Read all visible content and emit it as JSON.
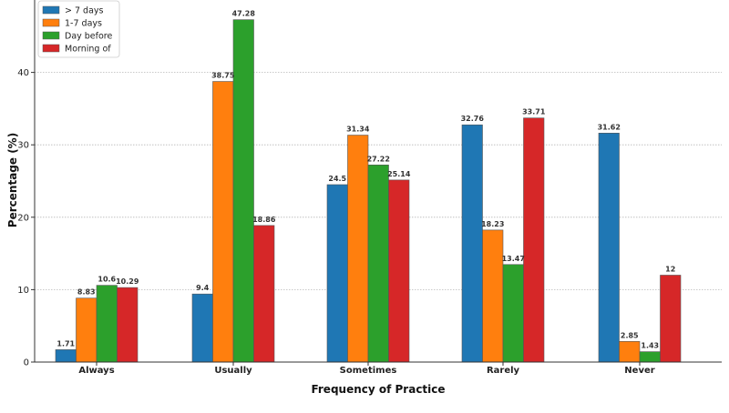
{
  "chart_data": {
    "type": "bar",
    "title": "",
    "xlabel": "Frequency of Practice",
    "ylabel": "Percentage (%)",
    "ylim": [
      0,
      50
    ],
    "yticks": [
      0,
      10,
      20,
      30,
      40
    ],
    "grid": "y-dotted",
    "legend_position": "top-left",
    "categories": [
      "Always",
      "Usually",
      "Sometimes",
      "Rarely",
      "Never"
    ],
    "series": [
      {
        "name": "> 7 days",
        "color": "#1f77b4",
        "values": [
          1.71,
          9.4,
          24.5,
          32.76,
          31.62
        ]
      },
      {
        "name": "1-7 days",
        "color": "#ff7f0e",
        "values": [
          8.83,
          38.75,
          31.34,
          18.23,
          2.85
        ]
      },
      {
        "name": "Day before",
        "color": "#2ca02c",
        "values": [
          10.6,
          47.28,
          27.22,
          13.47,
          1.43
        ]
      },
      {
        "name": "Morning of",
        "color": "#d62728",
        "values": [
          10.29,
          18.86,
          25.14,
          33.71,
          12.0
        ]
      }
    ]
  }
}
